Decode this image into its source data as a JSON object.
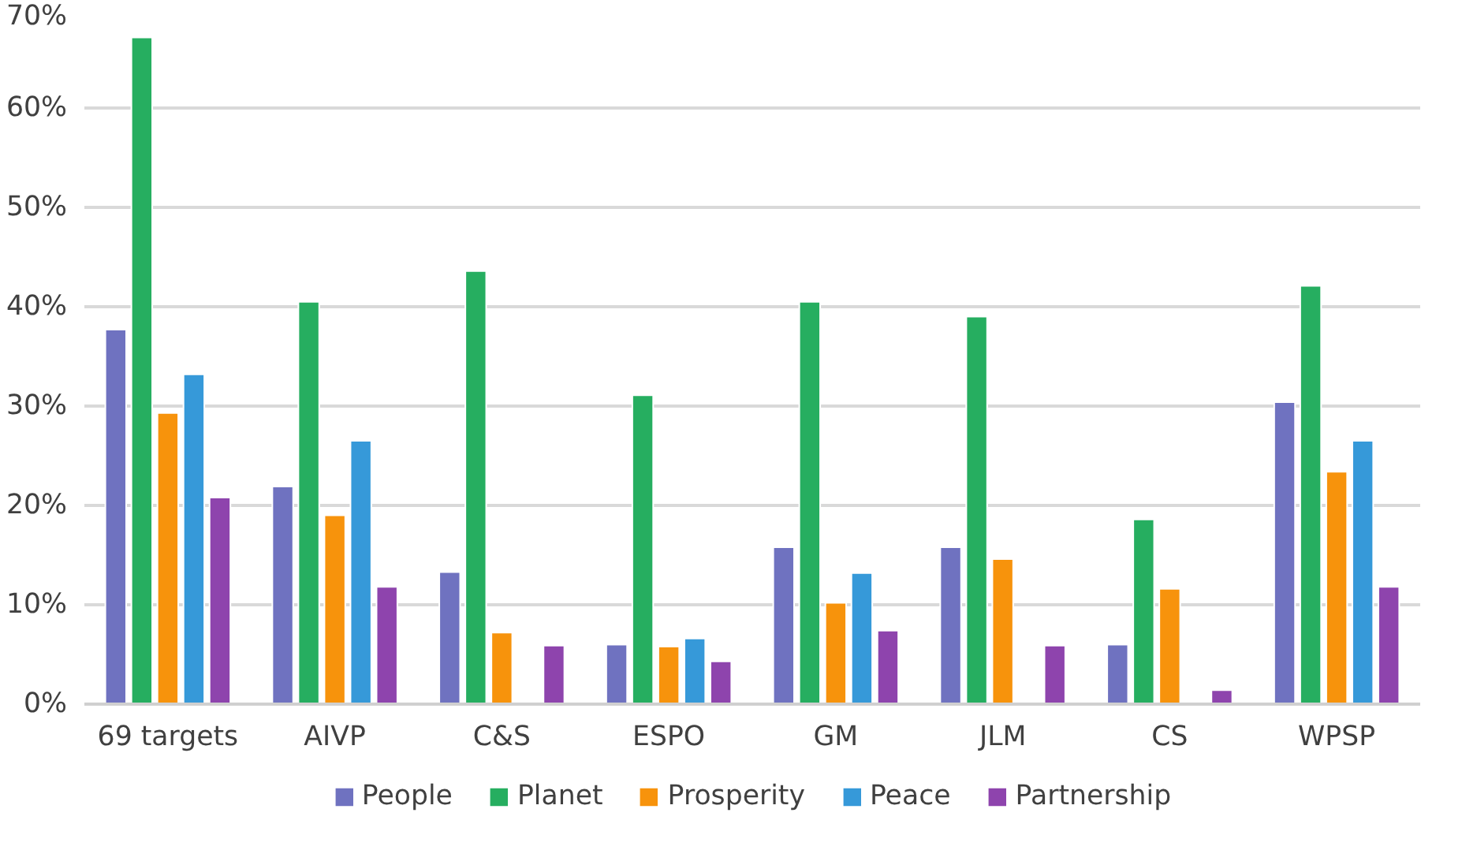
{
  "chart_data": {
    "type": "bar",
    "categories": [
      "69 targets",
      "AIVP",
      "C&S",
      "ESPO",
      "GM",
      "JLM",
      "CS",
      "WPSP"
    ],
    "series": [
      {
        "name": "People",
        "color": "#6f72c0",
        "values": [
          37.7,
          21.9,
          13.3,
          6.0,
          15.8,
          15.8,
          6.0,
          30.4
        ]
      },
      {
        "name": "Planet",
        "color": "#26ae60",
        "values": [
          67.1,
          40.5,
          43.6,
          31.1,
          40.5,
          39.0,
          18.6,
          42.1
        ]
      },
      {
        "name": "Prosperity",
        "color": "#f7930c",
        "values": [
          29.3,
          19.0,
          7.2,
          5.8,
          10.2,
          14.6,
          11.6,
          23.4
        ]
      },
      {
        "name": "Peace",
        "color": "#3699d9",
        "values": [
          33.2,
          26.5,
          null,
          6.6,
          13.2,
          null,
          null,
          26.5
        ]
      },
      {
        "name": "Partnership",
        "color": "#8e44ad",
        "values": [
          20.8,
          11.8,
          5.9,
          4.3,
          7.4,
          5.9,
          1.4,
          11.8
        ]
      }
    ],
    "ylim": [
      0,
      70
    ],
    "yticks": [
      {
        "value": 0,
        "label": "0%"
      },
      {
        "value": 10,
        "label": "10%"
      },
      {
        "value": 20,
        "label": "20%"
      },
      {
        "value": 30,
        "label": "30%"
      },
      {
        "value": 40,
        "label": "40%"
      },
      {
        "value": 50,
        "label": "50%"
      },
      {
        "value": 60,
        "label": "60%"
      },
      {
        "value": 70,
        "label": "70%"
      }
    ],
    "grid": "y",
    "legend": "bottom"
  }
}
